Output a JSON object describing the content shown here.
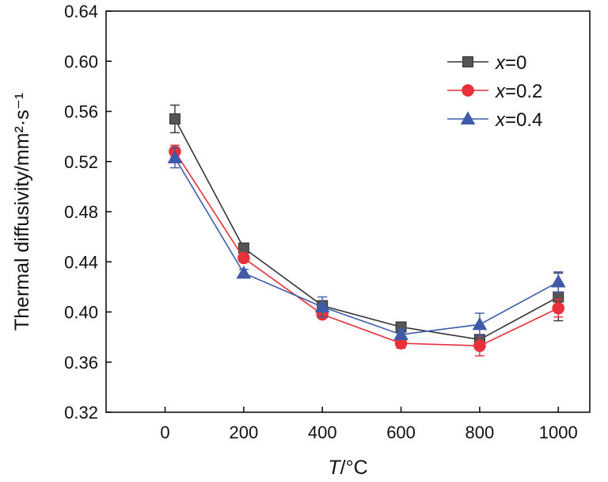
{
  "chart_data": {
    "type": "line",
    "ylabel": "Thermal diffusivity/mm²·s⁻¹",
    "xlabel_var": "T",
    "xlabel_unit": "/°C",
    "xlim": [
      -150,
      1080
    ],
    "ylim": [
      0.32,
      0.64
    ],
    "xticks": [
      0,
      200,
      400,
      600,
      800,
      1000
    ],
    "yticks": [
      0.32,
      0.36,
      0.4,
      0.44,
      0.48,
      0.52,
      0.56,
      0.6,
      0.64
    ],
    "x": [
      25,
      200,
      400,
      600,
      800,
      1000
    ],
    "legend_position": "top-right",
    "grid": false,
    "series": [
      {
        "name": "x=0",
        "legend_var": "x",
        "legend_val": "=0",
        "marker": "square",
        "color": "#333333",
        "fill": "#555555",
        "values": [
          0.554,
          0.451,
          0.405,
          0.388,
          0.378,
          0.412
        ],
        "errors": [
          0.011,
          0.002,
          0.003,
          0.003,
          0.003,
          0.019
        ]
      },
      {
        "name": "x=0.2",
        "legend_var": "x",
        "legend_val": "=0.2",
        "marker": "circle",
        "color": "#e8313a",
        "fill": "#e8313a",
        "values": [
          0.528,
          0.443,
          0.398,
          0.375,
          0.373,
          0.403
        ],
        "errors": [
          0.005,
          0.003,
          0.003,
          0.004,
          0.008,
          0.007
        ]
      },
      {
        "name": "x=0.4",
        "legend_var": "x",
        "legend_val": "=0.4",
        "marker": "triangle",
        "color": "#3d5ba9",
        "fill": "#3d5ba9",
        "values": [
          0.523,
          0.431,
          0.404,
          0.382,
          0.39,
          0.424
        ],
        "errors": [
          0.008,
          0.003,
          0.008,
          0.004,
          0.009,
          0.008
        ]
      }
    ]
  }
}
